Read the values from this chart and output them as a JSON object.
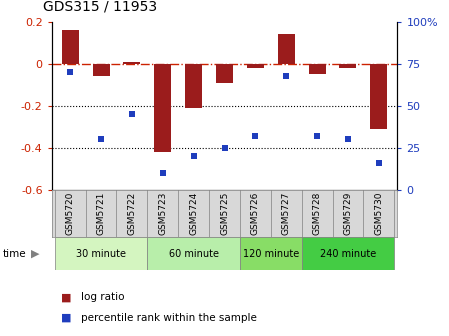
{
  "title": "GDS315 / 11953",
  "samples": [
    "GSM5720",
    "GSM5721",
    "GSM5722",
    "GSM5723",
    "GSM5724",
    "GSM5725",
    "GSM5726",
    "GSM5727",
    "GSM5728",
    "GSM5729",
    "GSM5730"
  ],
  "log_ratio": [
    0.16,
    -0.06,
    0.01,
    -0.42,
    -0.21,
    -0.09,
    -0.02,
    0.14,
    -0.05,
    -0.02,
    -0.31
  ],
  "percentile": [
    70,
    30,
    45,
    10,
    20,
    25,
    32,
    68,
    32,
    30,
    16
  ],
  "bar_color": "#9b1c1c",
  "dot_color": "#1f3dbd",
  "hline_color": "#cc2200",
  "dotline_color": "#000000",
  "ylim_left": [
    -0.6,
    0.2
  ],
  "ylim_right": [
    0,
    100
  ],
  "yticks_left": [
    0.2,
    0.0,
    -0.2,
    -0.4,
    -0.6
  ],
  "yticks_right": [
    100,
    75,
    50,
    25,
    0
  ],
  "groups": [
    {
      "label": "30 minute",
      "start": 0,
      "end": 2,
      "color": "#d4f5c0"
    },
    {
      "label": "60 minute",
      "start": 3,
      "end": 5,
      "color": "#b8eeaa"
    },
    {
      "label": "120 minute",
      "start": 6,
      "end": 7,
      "color": "#88dd66"
    },
    {
      "label": "240 minute",
      "start": 8,
      "end": 10,
      "color": "#44cc44"
    }
  ],
  "legend_bar_label": "log ratio",
  "legend_dot_label": "percentile rank within the sample",
  "time_label": "time",
  "bg_sample": "#d8d8d8",
  "bar_width": 0.55
}
